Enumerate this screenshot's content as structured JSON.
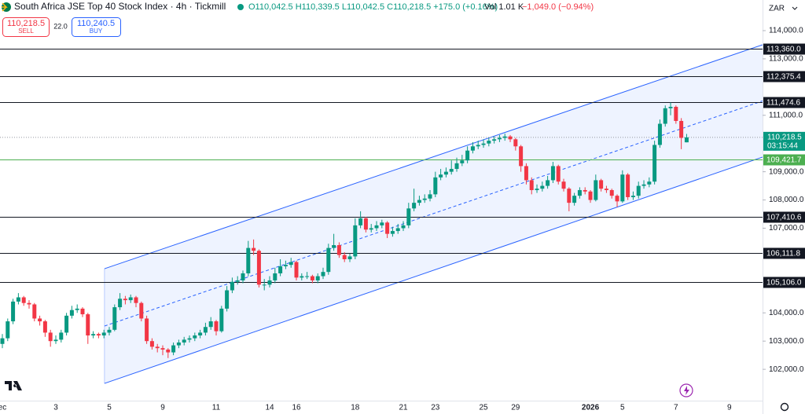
{
  "header": {
    "symbol": "South Africa JSE Top 40 Stock Index · 4h · Tickmill",
    "ohlc": "O110,042.5 H110,339.5 L110,042.5 C110,218.5 +175.0 (+0.16%)",
    "volume": "Vol 1.01 K",
    "volume_change": "−1,049.0 (−0.94%)",
    "sell_price": "110,218.5",
    "sell": "SELL",
    "spread": "22.0",
    "buy_price": "110,240.5",
    "buy": "BUY",
    "currency": "ZAR"
  },
  "chart_data": {
    "type": "candlestick",
    "up_color": "#089981",
    "down_color": "#f23645",
    "xlim": [
      -0.44,
      142.2
    ],
    "xticks": [
      {
        "value": 0,
        "label": "ec"
      },
      {
        "value": 10,
        "label": "3"
      },
      {
        "value": 20,
        "label": "5"
      },
      {
        "value": 30,
        "label": "9"
      },
      {
        "value": 40,
        "label": "11"
      },
      {
        "value": 50,
        "label": "14"
      },
      {
        "value": 55,
        "label": "16"
      },
      {
        "value": 66,
        "label": "18"
      },
      {
        "value": 75,
        "label": "21"
      },
      {
        "value": 81,
        "label": "23"
      },
      {
        "value": 90,
        "label": "25"
      },
      {
        "value": 96,
        "label": "29"
      },
      {
        "value": 110,
        "label": "2026"
      },
      {
        "value": 116,
        "label": "5"
      },
      {
        "value": 126,
        "label": "7"
      },
      {
        "value": 136,
        "label": "9"
      }
    ],
    "ylim": [
      100890,
      115085
    ],
    "yticks": [
      {
        "value": 114000,
        "label": "114,000.0"
      },
      {
        "value": 113000,
        "label": "113,000.0"
      },
      {
        "value": 111000,
        "label": "111,000.0"
      },
      {
        "value": 109000,
        "label": "109,000.0"
      },
      {
        "value": 108000,
        "label": "108,000.0"
      },
      {
        "value": 107000,
        "label": "107,000.0"
      },
      {
        "value": 104000,
        "label": "104,000.0"
      },
      {
        "value": 103000,
        "label": "103,000.0"
      },
      {
        "value": 102000,
        "label": "102,000.0"
      }
    ],
    "grid": false,
    "ohlc": [
      [
        102900,
        103250,
        102750,
        103100
      ],
      [
        103100,
        103800,
        103000,
        103700
      ],
      [
        103700,
        104500,
        103600,
        104400
      ],
      [
        104400,
        104700,
        104300,
        104550
      ],
      [
        104550,
        104600,
        104250,
        104350
      ],
      [
        104350,
        104450,
        104150,
        104300
      ],
      [
        104300,
        104350,
        103700,
        103800
      ],
      [
        103800,
        103900,
        103550,
        103700
      ],
      [
        103700,
        103750,
        103150,
        103300
      ],
      [
        103300,
        103400,
        102800,
        103000
      ],
      [
        103000,
        103200,
        102900,
        103050
      ],
      [
        103050,
        103400,
        102950,
        103300
      ],
      [
        103300,
        104000,
        103200,
        103900
      ],
      [
        103900,
        104250,
        103800,
        104100
      ],
      [
        104100,
        104300,
        104000,
        104150
      ],
      [
        104150,
        104200,
        103850,
        103950
      ],
      [
        103950,
        104000,
        102900,
        103200
      ],
      [
        103200,
        103350,
        103100,
        103250
      ],
      [
        103250,
        103300,
        103100,
        103200
      ],
      [
        103200,
        103400,
        103100,
        103300
      ],
      [
        103300,
        103500,
        103200,
        103400
      ],
      [
        103400,
        104300,
        103350,
        104200
      ],
      [
        104200,
        104700,
        104100,
        104500
      ],
      [
        104500,
        104600,
        104300,
        104450
      ],
      [
        104450,
        104650,
        104350,
        104550
      ],
      [
        104550,
        104600,
        104200,
        104350
      ],
      [
        104350,
        104400,
        103700,
        103800
      ],
      [
        103800,
        103900,
        102900,
        103000
      ],
      [
        103000,
        103100,
        102700,
        102800
      ],
      [
        102800,
        102900,
        102600,
        102750
      ],
      [
        102750,
        102850,
        102500,
        102700
      ],
      [
        102700,
        102750,
        102400,
        102600
      ],
      [
        102600,
        102950,
        102500,
        102850
      ],
      [
        102850,
        103050,
        102750,
        102950
      ],
      [
        102950,
        103150,
        102850,
        103050
      ],
      [
        103050,
        103200,
        102950,
        103100
      ],
      [
        103100,
        103300,
        103000,
        103200
      ],
      [
        103200,
        103400,
        103100,
        103300
      ],
      [
        103300,
        103650,
        103200,
        103500
      ],
      [
        103500,
        103850,
        103400,
        103700
      ],
      [
        103700,
        103750,
        103200,
        103350
      ],
      [
        103350,
        104250,
        103300,
        104150
      ],
      [
        104150,
        104950,
        104050,
        104800
      ],
      [
        104800,
        105250,
        104700,
        105100
      ],
      [
        105100,
        105300,
        105000,
        105150
      ],
      [
        105150,
        105500,
        105050,
        105400
      ],
      [
        105400,
        106550,
        105300,
        106300
      ],
      [
        106300,
        106600,
        106050,
        106200
      ],
      [
        106200,
        106250,
        104900,
        105000
      ],
      [
        105000,
        105200,
        104800,
        105000
      ],
      [
        105000,
        105300,
        104900,
        105150
      ],
      [
        105150,
        105600,
        105050,
        105400
      ],
      [
        105400,
        105900,
        105300,
        105650
      ],
      [
        105650,
        105850,
        105550,
        105700
      ],
      [
        105700,
        105950,
        105600,
        105800
      ],
      [
        105800,
        105850,
        105150,
        105250
      ],
      [
        105250,
        105400,
        105150,
        105300
      ],
      [
        105300,
        105450,
        105200,
        105300
      ],
      [
        105300,
        105350,
        105050,
        105150
      ],
      [
        105150,
        105400,
        105050,
        105300
      ],
      [
        105300,
        105600,
        105200,
        105450
      ],
      [
        105450,
        106450,
        105350,
        106300
      ],
      [
        106300,
        106800,
        106200,
        106400
      ],
      [
        106400,
        106500,
        105950,
        106050
      ],
      [
        106050,
        106150,
        105800,
        105900
      ],
      [
        105900,
        106100,
        105800,
        106000
      ],
      [
        106000,
        107350,
        105900,
        107100
      ],
      [
        107100,
        107600,
        107000,
        107350
      ],
      [
        107350,
        107400,
        106850,
        106950
      ],
      [
        106950,
        107150,
        106850,
        107000
      ],
      [
        107000,
        107250,
        106900,
        107100
      ],
      [
        107100,
        107300,
        107000,
        107200
      ],
      [
        107200,
        107250,
        106650,
        106800
      ],
      [
        106800,
        107050,
        106700,
        106900
      ],
      [
        106900,
        107150,
        106800,
        107000
      ],
      [
        107000,
        107250,
        106900,
        107100
      ],
      [
        107100,
        107900,
        107000,
        107700
      ],
      [
        107700,
        108400,
        107600,
        107900
      ],
      [
        107900,
        108150,
        107800,
        108000
      ],
      [
        108000,
        108200,
        107900,
        108050
      ],
      [
        108050,
        108350,
        107950,
        108200
      ],
      [
        108200,
        109000,
        108100,
        108800
      ],
      [
        108800,
        109100,
        108700,
        108900
      ],
      [
        108900,
        109150,
        108800,
        109000
      ],
      [
        109000,
        109400,
        108900,
        109100
      ],
      [
        109100,
        109500,
        109000,
        109300
      ],
      [
        109300,
        109600,
        109200,
        109400
      ],
      [
        109400,
        109900,
        109300,
        109750
      ],
      [
        109750,
        110050,
        109650,
        109900
      ],
      [
        109900,
        110100,
        109800,
        109950
      ],
      [
        109950,
        110150,
        109850,
        110000
      ],
      [
        110000,
        110200,
        109900,
        110100
      ],
      [
        110100,
        110250,
        110000,
        110150
      ],
      [
        110150,
        110300,
        110050,
        110200
      ],
      [
        110200,
        110350,
        110100,
        110250
      ],
      [
        110250,
        110300,
        110050,
        110150
      ],
      [
        110150,
        110200,
        109750,
        109900
      ],
      [
        109900,
        109950,
        109000,
        109200
      ],
      [
        109200,
        109300,
        108550,
        108700
      ],
      [
        108700,
        108800,
        108200,
        108350
      ],
      [
        108350,
        108550,
        108250,
        108400
      ],
      [
        108400,
        108650,
        108300,
        108500
      ],
      [
        108500,
        108850,
        108400,
        108700
      ],
      [
        108700,
        109350,
        108600,
        109200
      ],
      [
        109200,
        109250,
        108550,
        108650
      ],
      [
        108650,
        108750,
        108300,
        108400
      ],
      [
        108400,
        108450,
        107600,
        107900
      ],
      [
        107900,
        108250,
        107800,
        108150
      ],
      [
        108150,
        108450,
        108050,
        108350
      ],
      [
        108350,
        108450,
        108200,
        108300
      ],
      [
        108300,
        108350,
        107900,
        108000
      ],
      [
        108000,
        108900,
        107950,
        108700
      ],
      [
        108700,
        108750,
        108300,
        108400
      ],
      [
        108400,
        108500,
        108250,
        108350
      ],
      [
        108350,
        108400,
        108050,
        108150
      ],
      [
        108150,
        108200,
        107750,
        107950
      ],
      [
        107950,
        109050,
        107900,
        108900
      ],
      [
        108900,
        108950,
        108000,
        108100
      ],
      [
        108100,
        108300,
        108000,
        108150
      ],
      [
        108150,
        108650,
        108050,
        108500
      ],
      [
        108500,
        108700,
        108400,
        108550
      ],
      [
        108550,
        108800,
        108450,
        108650
      ],
      [
        108650,
        110100,
        108550,
        109950
      ],
      [
        109950,
        110850,
        109850,
        110700
      ],
      [
        110700,
        111350,
        110600,
        111250
      ],
      [
        111250,
        111450,
        111000,
        111300
      ],
      [
        111300,
        111350,
        110700,
        110800
      ],
      [
        110800,
        110900,
        109800,
        110200
      ],
      [
        110042.5,
        110339.5,
        110042.5,
        110218.5
      ]
    ],
    "channel": {
      "x": [
        19.1,
        142.2
      ],
      "upper": [
        105564,
        113499
      ],
      "lower": [
        101500,
        109518
      ],
      "color": "#2962ff"
    },
    "levels": [
      {
        "value": 113360.0,
        "label": "113,360.0",
        "color": "#131722"
      },
      {
        "value": 112375.4,
        "label": "112,375.4",
        "color": "#131722"
      },
      {
        "value": 111474.6,
        "label": "111,474.6",
        "color": "#131722"
      },
      {
        "value": 109421.7,
        "label": "109,421.7",
        "color": "#4caf50"
      },
      {
        "value": 107410.6,
        "label": "107,410.6",
        "color": "#131722"
      },
      {
        "value": 106111.8,
        "label": "106,111.8",
        "color": "#131722"
      },
      {
        "value": 105106.0,
        "label": "105,106.0",
        "color": "#131722"
      }
    ],
    "last_price": {
      "value": 110218.5,
      "label": "110,218.5",
      "countdown": "03:15:44",
      "color": "#089981"
    }
  }
}
